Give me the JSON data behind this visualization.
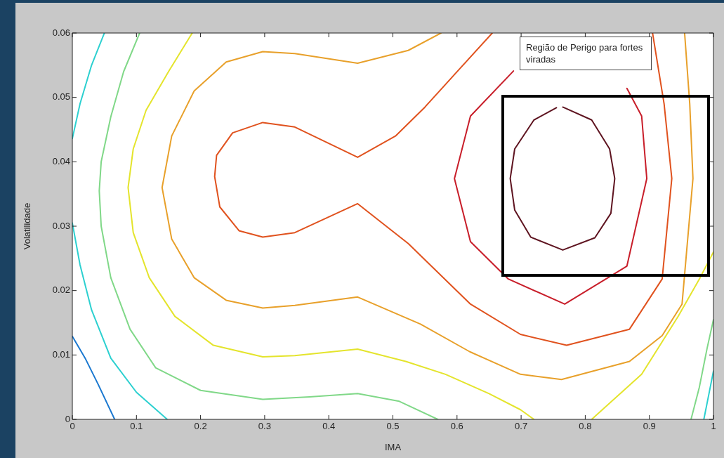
{
  "chart_data": {
    "type": "line",
    "xlabel": "IMA",
    "ylabel": "Volatilidade",
    "xlim": [
      0,
      1
    ],
    "ylim": [
      0,
      0.06
    ],
    "xticks": [
      0,
      0.1,
      0.2,
      0.3,
      0.4,
      0.5,
      0.6,
      0.7,
      0.8,
      0.9,
      1
    ],
    "yticks": [
      0,
      0.01,
      0.02,
      0.03,
      0.04,
      0.05,
      0.06
    ],
    "annotations": [
      "Região de Perigo para fortes viradas"
    ],
    "legend": false,
    "series": [
      {
        "color": "#1a78d0",
        "x": [
          0,
          0.02,
          0.04,
          0.066
        ],
        "values": [
          0.0129,
          0.0095,
          0.0055,
          0
        ]
      },
      {
        "color": "#2cd0d0",
        "x": [
          0.05,
          0.03,
          0.012,
          0,
          null,
          0,
          0.012,
          0.03,
          0.06,
          0.1,
          0.148
        ],
        "values": [
          0.06,
          0.055,
          0.049,
          0.0436,
          null,
          0.0305,
          0.024,
          0.017,
          0.0095,
          0.0042,
          0
        ]
      },
      {
        "color": "#2cd0d0",
        "x": [
          0.985,
          0.993,
          1
        ],
        "values": [
          0,
          0.004,
          0.0075
        ]
      },
      {
        "color": "#80d888",
        "x": [
          0.105,
          0.08,
          0.06,
          0.045,
          0.042,
          0.045,
          0.06,
          0.09,
          0.13,
          0.2,
          0.297,
          0.37,
          0.445,
          0.51,
          0.57
        ],
        "values": [
          0.06,
          0.054,
          0.047,
          0.04,
          0.0355,
          0.03,
          0.022,
          0.014,
          0.008,
          0.0045,
          0.0031,
          0.0035,
          0.004,
          0.0028,
          0
        ]
      },
      {
        "color": "#80d888",
        "x": [
          0.965,
          0.978,
          0.99,
          1
        ],
        "values": [
          0,
          0.005,
          0.011,
          0.0155
        ]
      },
      {
        "color": "#e4e42c",
        "x": [
          0.187,
          0.15,
          0.115,
          0.095,
          0.087,
          0.095,
          0.12,
          0.16,
          0.22,
          0.297,
          0.347,
          0.445,
          0.52,
          0.582,
          0.65,
          0.699,
          0.72,
          null,
          0.81,
          0.888,
          0.945,
          0.978,
          1
        ],
        "values": [
          0.06,
          0.054,
          0.048,
          0.042,
          0.036,
          0.029,
          0.022,
          0.016,
          0.0115,
          0.0097,
          0.0099,
          0.0109,
          0.009,
          0.007,
          0.004,
          0.0015,
          0,
          null,
          0,
          0.007,
          0.016,
          0.0218,
          0.026
        ]
      },
      {
        "color": "#e8a02a",
        "x": [
          0.575,
          0.524,
          0.445,
          0.347,
          0.297,
          0.24,
          0.19,
          0.155,
          0.14,
          0.155,
          0.19,
          0.24,
          0.297,
          0.347,
          0.445,
          0.543,
          0.62,
          0.699,
          0.763,
          0.869,
          0.92,
          0.951,
          0.968,
          0.963,
          0.955
        ],
        "values": [
          0.06,
          0.0573,
          0.0553,
          0.0568,
          0.0571,
          0.0555,
          0.051,
          0.044,
          0.036,
          0.028,
          0.022,
          0.0185,
          0.0173,
          0.0177,
          0.019,
          0.0148,
          0.0105,
          0.007,
          0.0062,
          0.009,
          0.013,
          0.0179,
          0.0374,
          0.049,
          0.06
        ]
      },
      {
        "color": "#e0521e",
        "x": [
          0.655,
          0.601,
          0.55,
          0.504,
          0.445,
          0.347,
          0.297,
          0.25,
          0.225,
          0.222,
          0.23,
          0.26,
          0.297,
          0.347,
          0.445,
          0.524,
          0.621,
          0.699,
          0.771,
          0.869,
          0.92,
          0.935,
          0.923,
          0.905
        ],
        "values": [
          0.06,
          0.0541,
          0.0485,
          0.044,
          0.0407,
          0.0454,
          0.0461,
          0.0445,
          0.041,
          0.0377,
          0.033,
          0.0293,
          0.0283,
          0.029,
          0.0335,
          0.0273,
          0.0179,
          0.0132,
          0.0115,
          0.014,
          0.0218,
          0.0374,
          0.049,
          0.06
        ]
      },
      {
        "color": "#c81e2a",
        "x": [
          0.688,
          0.621,
          0.596,
          0.621,
          0.68,
          0.768,
          0.865,
          0.896,
          0.888,
          0.865
        ],
        "values": [
          0.0541,
          0.0471,
          0.0374,
          0.0276,
          0.0218,
          0.0179,
          0.0238,
          0.0374,
          0.0471,
          0.0514
        ]
      },
      {
        "color": "#5e1420",
        "x": [
          0.765,
          0.81,
          0.838,
          0.846,
          0.84,
          0.815,
          0.765,
          0.715,
          0.69,
          0.683,
          0.69,
          0.72,
          0.755
        ],
        "values": [
          0.0485,
          0.0465,
          0.042,
          0.0374,
          0.032,
          0.0282,
          0.0263,
          0.0283,
          0.0325,
          0.0374,
          0.042,
          0.0465,
          0.0484
        ]
      }
    ]
  }
}
